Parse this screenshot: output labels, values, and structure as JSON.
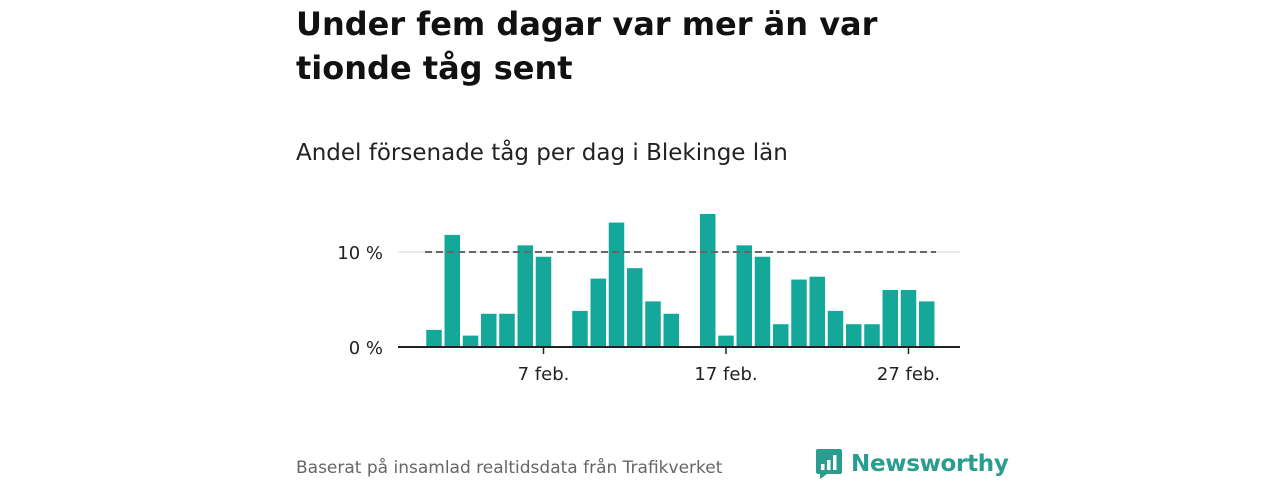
{
  "title": "Under fem dagar var mer än var tionde tåg sent",
  "subtitle": "Andel försenade tåg per dag i Blekinge län",
  "source": "Baserat på insamlad realtidsdata från Trafikverket",
  "brand": {
    "name": "Newsworthy",
    "color": "#2a9d8f"
  },
  "chart_data": {
    "type": "bar",
    "title": "Andel försenade tåg per dag i Blekinge län",
    "xlabel": "",
    "ylabel": "",
    "x": [
      1,
      2,
      3,
      4,
      5,
      6,
      7,
      8,
      9,
      10,
      11,
      12,
      13,
      14,
      15,
      16,
      17,
      18,
      19,
      20,
      21,
      22,
      23,
      24,
      25,
      26,
      27,
      28
    ],
    "values": [
      1.8,
      11.8,
      1.2,
      3.5,
      3.5,
      10.7,
      9.5,
      null,
      3.8,
      7.2,
      13.1,
      8.3,
      4.8,
      3.5,
      null,
      14.0,
      1.2,
      10.7,
      9.5,
      2.4,
      7.1,
      7.4,
      3.8,
      2.4,
      2.4,
      6.0,
      6.0,
      4.8
    ],
    "ylim": [
      0,
      15
    ],
    "reference_line": {
      "value": 10,
      "style": "dashed"
    },
    "y_ticks": [
      {
        "value": 0,
        "label": "0 %"
      },
      {
        "value": 10,
        "label": "10 %"
      }
    ],
    "x_ticks": [
      {
        "x": 7,
        "label": "7 feb."
      },
      {
        "x": 17,
        "label": "17 feb."
      },
      {
        "x": 27,
        "label": "27 feb."
      }
    ],
    "bar_color": "#14a89a",
    "grid": true
  }
}
